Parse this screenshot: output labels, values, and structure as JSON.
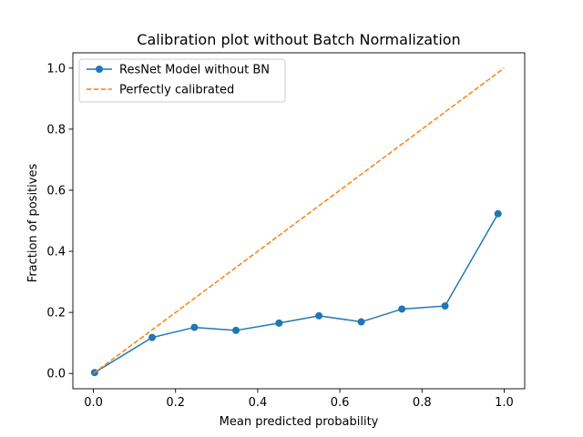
{
  "chart_data": {
    "type": "line",
    "title": "Calibration plot without Batch Normalization",
    "xlabel": "Mean predicted probability",
    "ylabel": "Fraction of positives",
    "xlim": [
      -0.05,
      1.05
    ],
    "ylim": [
      -0.05,
      1.05
    ],
    "xticks": [
      0.0,
      0.2,
      0.4,
      0.6,
      0.8,
      1.0
    ],
    "yticks": [
      0.0,
      0.2,
      0.4,
      0.6,
      0.8,
      1.0
    ],
    "xtick_labels": [
      "0.0",
      "0.2",
      "0.4",
      "0.6",
      "0.8",
      "1.0"
    ],
    "ytick_labels": [
      "0.0",
      "0.2",
      "0.4",
      "0.6",
      "0.8",
      "1.0"
    ],
    "grid": false,
    "legend_position": "top-left",
    "series": [
      {
        "name": "ResNet Model without BN",
        "style": "solid-markers",
        "color": "#1f77b4",
        "x": [
          0.003,
          0.143,
          0.246,
          0.347,
          0.452,
          0.549,
          0.652,
          0.751,
          0.856,
          0.985
        ],
        "y": [
          0.003,
          0.118,
          0.151,
          0.141,
          0.165,
          0.189,
          0.169,
          0.211,
          0.221,
          0.523
        ]
      },
      {
        "name": "Perfectly calibrated",
        "style": "dashed",
        "color": "#ff7f0e",
        "x": [
          0.0,
          1.0
        ],
        "y": [
          0.0,
          1.0
        ]
      }
    ]
  }
}
